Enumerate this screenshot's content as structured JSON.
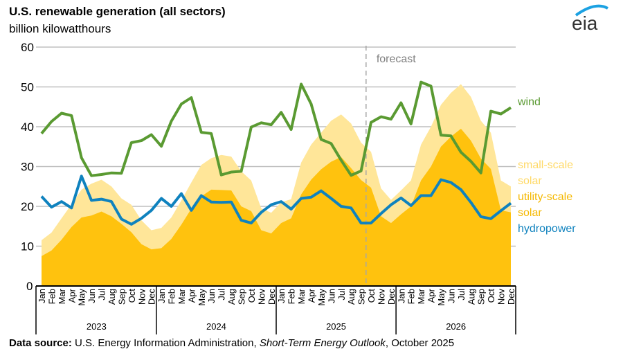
{
  "header": {
    "title": "U.S. renewable generation (all sectors)",
    "subtitle": "billion kilowatthours",
    "logo_text": "eia"
  },
  "source": {
    "label": "Data source:",
    "text": " U.S. Energy Information Administration, ",
    "italic": "Short-Term Energy Outlook",
    "tail": ", October 2025"
  },
  "colors": {
    "wind": "#5a9a32",
    "hydropower": "#0f82be",
    "utility_solar": "#ffc20e",
    "small_solar": "#ffe699",
    "small_solar_label": "#ffd966",
    "utility_solar_label": "#f5b800",
    "grid": "#bfbfbf",
    "forecast_line": "#a6a6a6",
    "logo_arc": "#1ba1e2"
  },
  "chart_data": {
    "type": "area",
    "title": "U.S. renewable generation (all sectors)",
    "ylabel": "billion kilowatthours",
    "xlabel": "",
    "ylim": [
      0,
      60
    ],
    "yticks": [
      0,
      10,
      20,
      30,
      40,
      50,
      60
    ],
    "grid": true,
    "legend": "right (inline labels)",
    "annotation": {
      "text": "forecast",
      "at_index": 33
    },
    "years": [
      "2023",
      "2024",
      "2025",
      "2026"
    ],
    "months": [
      "Jan",
      "Feb",
      "Mar",
      "Apr",
      "May",
      "Jun",
      "Jul",
      "Aug",
      "Sep",
      "Oct",
      "Nov",
      "Dec"
    ],
    "series": [
      {
        "name": "utility-scale solar",
        "label_lines": [
          "utility-scale",
          "solar"
        ],
        "kind": "area-stacked-base",
        "values": [
          7.5,
          8.9,
          11.6,
          14.8,
          17.2,
          17.7,
          18.7,
          17.5,
          15.6,
          13.5,
          10.5,
          9.2,
          9.5,
          11.8,
          15.4,
          19.4,
          22.5,
          24.2,
          24.1,
          24.0,
          20.0,
          18.8,
          14.0,
          13.2,
          15.8,
          17.0,
          23.0,
          26.7,
          29.3,
          31.2,
          32.4,
          29.6,
          26.6,
          24.7,
          17.5,
          15.8,
          18.0,
          20.0,
          26.5,
          30.0,
          35.0,
          37.5,
          39.5,
          36.5,
          32.0,
          29.4,
          19.0,
          18.5
        ]
      },
      {
        "name": "small-scale solar",
        "label_lines": [
          "small-scale",
          "solar"
        ],
        "kind": "area-stacked-total",
        "values": [
          11.5,
          13.4,
          17.0,
          20.5,
          24.2,
          25.7,
          26.7,
          25.0,
          22.0,
          20.4,
          16.5,
          14.0,
          14.6,
          17.2,
          21.5,
          26.0,
          30.4,
          32.1,
          32.9,
          32.5,
          28.8,
          26.5,
          19.5,
          18.4,
          21.0,
          21.8,
          31.0,
          35.5,
          38.5,
          41.5,
          43.1,
          40.8,
          36.0,
          33.7,
          24.5,
          21.6,
          24.0,
          26.5,
          35.5,
          40.0,
          45.5,
          48.5,
          50.7,
          47.5,
          41.5,
          38.5,
          26.5,
          25.0
        ]
      },
      {
        "name": "hydropower",
        "label_lines": [
          "hydropower"
        ],
        "kind": "line",
        "values": [
          22.5,
          19.8,
          21.2,
          19.6,
          27.6,
          21.5,
          21.8,
          21.2,
          16.8,
          15.5,
          17.0,
          19.0,
          22.0,
          20.0,
          23.2,
          19.0,
          22.7,
          21.1,
          21.0,
          21.1,
          16.5,
          15.8,
          18.5,
          20.4,
          21.2,
          19.3,
          22.0,
          22.3,
          23.9,
          22.0,
          20.0,
          19.6,
          15.8,
          15.8,
          18.2,
          20.4,
          22.1,
          20.2,
          22.7,
          22.7,
          26.7,
          26.0,
          24.2,
          21.0,
          17.4,
          16.9,
          18.9,
          20.8
        ]
      },
      {
        "name": "wind",
        "label_lines": [
          "wind"
        ],
        "kind": "line",
        "values": [
          38.3,
          41.3,
          43.4,
          42.8,
          32.2,
          27.7,
          28.0,
          28.4,
          28.3,
          36.0,
          36.5,
          38.0,
          35.1,
          41.4,
          45.7,
          47.3,
          38.6,
          38.3,
          27.9,
          28.6,
          28.8,
          39.9,
          41.0,
          40.5,
          43.6,
          39.3,
          50.7,
          45.7,
          36.8,
          35.8,
          31.6,
          27.8,
          28.9,
          41.1,
          42.5,
          41.9,
          46.0,
          40.7,
          51.2,
          50.2,
          37.9,
          37.7,
          33.6,
          31.3,
          28.4,
          43.9,
          43.2,
          44.8
        ]
      }
    ]
  }
}
